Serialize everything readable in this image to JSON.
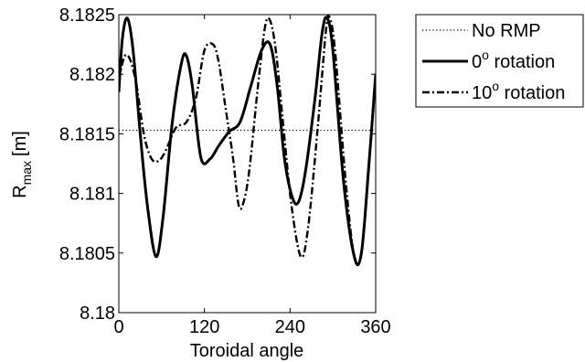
{
  "chart_data": {
    "type": "line",
    "xlabel": "Toroidal angle",
    "ylabel_main": "R",
    "ylabel_sub": "max",
    "ylabel_unit": "[m]",
    "xlim": [
      0,
      360
    ],
    "ylim": [
      8.18,
      8.1825
    ],
    "xticks": [
      0,
      120,
      240,
      360
    ],
    "xtick_labels": [
      "0",
      "120",
      "240",
      "360"
    ],
    "yticks": [
      8.18,
      8.1805,
      8.181,
      8.1815,
      8.182,
      8.1825
    ],
    "ytick_labels": [
      "8.18",
      "8.1805",
      "8.181",
      "8.1815",
      "8.182",
      "8.1825"
    ],
    "grid": false,
    "legend_position": "outside-top-right",
    "series": [
      {
        "name": "No RMP",
        "style": "dotted",
        "x": [
          0,
          360
        ],
        "y": [
          8.18153,
          8.18153
        ]
      },
      {
        "name_base": "0",
        "name_sup": "o",
        "name_rest": " rotation",
        "style": "solid",
        "x": [
          0,
          5,
          12,
          20,
          30,
          40,
          52,
          62,
          75,
          88,
          95,
          103,
          115,
          128,
          140,
          155,
          170,
          185,
          200,
          212,
          222,
          232,
          243,
          252,
          262,
          275,
          285,
          292,
          300,
          315,
          330,
          340,
          350,
          360
        ],
        "y": [
          8.18185,
          8.1823,
          8.18247,
          8.1822,
          8.1815,
          8.1809,
          8.18047,
          8.1808,
          8.1816,
          8.1821,
          8.18215,
          8.1819,
          8.1813,
          8.18129,
          8.1814,
          8.18152,
          8.1816,
          8.1819,
          8.1822,
          8.18225,
          8.1819,
          8.1813,
          8.18097,
          8.18093,
          8.1812,
          8.1818,
          8.18235,
          8.18247,
          8.1822,
          8.1811,
          8.18047,
          8.1805,
          8.1812,
          8.182
        ]
      },
      {
        "name_base": "10",
        "name_sup": "o",
        "name_rest": " rotation",
        "style": "dashdot",
        "x": [
          0,
          8,
          16,
          25,
          35,
          45,
          55,
          65,
          80,
          95,
          108,
          120,
          132,
          140,
          150,
          160,
          168,
          175,
          183,
          195,
          205,
          212,
          220,
          230,
          242,
          255,
          265,
          278,
          290,
          295,
          303,
          318,
          330,
          340,
          350,
          360
        ],
        "y": [
          8.18195,
          8.18215,
          8.18212,
          8.1819,
          8.1815,
          8.1813,
          8.18127,
          8.18135,
          8.18155,
          8.1816,
          8.1818,
          8.1822,
          8.18225,
          8.1821,
          8.1817,
          8.1813,
          8.1809,
          8.18093,
          8.1812,
          8.1819,
          8.1824,
          8.18245,
          8.1822,
          8.1816,
          8.1809,
          8.18047,
          8.1807,
          8.1815,
          8.18235,
          8.18248,
          8.1822,
          8.1811,
          8.18047,
          8.1805,
          8.1812,
          8.182
        ]
      }
    ],
    "colors": {
      "line": "#000000",
      "axis": "#000000",
      "background": "#ffffff"
    }
  }
}
